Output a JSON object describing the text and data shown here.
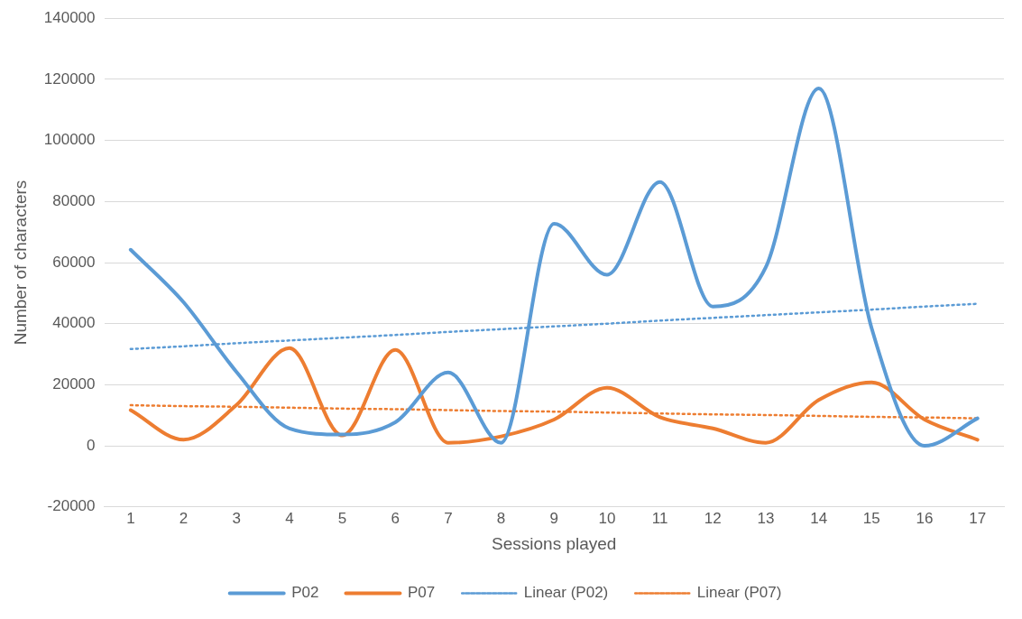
{
  "chart_data": {
    "type": "line",
    "xlabel": "Sessions played",
    "ylabel": "Number of characters",
    "x": [
      1,
      2,
      3,
      4,
      5,
      6,
      7,
      8,
      9,
      10,
      11,
      12,
      13,
      14,
      15,
      16,
      17
    ],
    "xlim": [
      0.5,
      17.5
    ],
    "xticks": [
      1,
      2,
      3,
      4,
      5,
      6,
      7,
      8,
      9,
      10,
      11,
      12,
      13,
      14,
      15,
      16,
      17
    ],
    "ylim": [
      -20000,
      140000
    ],
    "yticks": [
      -20000,
      0,
      20000,
      40000,
      60000,
      80000,
      100000,
      120000,
      140000
    ],
    "grid": "y",
    "legend": "bottom",
    "marker": "none",
    "series": [
      {
        "name": "P02",
        "color": "#5b9bd5",
        "line_style": "solid",
        "values": [
          64200,
          47000,
          24200,
          5700,
          3700,
          7700,
          24000,
          1000,
          72700,
          56000,
          86400,
          45600,
          58500,
          117000,
          38500,
          0,
          9000
        ]
      },
      {
        "name": "P07",
        "color": "#ed7d31",
        "line_style": "solid",
        "values": [
          11700,
          2000,
          13400,
          32000,
          3400,
          31400,
          1000,
          3100,
          8600,
          19000,
          9400,
          5700,
          1000,
          15000,
          20800,
          8600,
          2000
        ]
      },
      {
        "name": "Linear (P02)",
        "color": "#5b9bd5",
        "line_style": "dotted",
        "values": [
          31700,
          32600,
          33600,
          34500,
          35400,
          36300,
          37300,
          38200,
          39100,
          40000,
          41000,
          41900,
          42800,
          43700,
          44600,
          45600,
          46500
        ]
      },
      {
        "name": "Linear (P07)",
        "color": "#ed7d31",
        "line_style": "dotted",
        "values": [
          13300,
          13000,
          12800,
          12500,
          12200,
          12000,
          11700,
          11400,
          11200,
          10900,
          10600,
          10300,
          10100,
          9800,
          9500,
          9300,
          9000
        ]
      }
    ]
  }
}
